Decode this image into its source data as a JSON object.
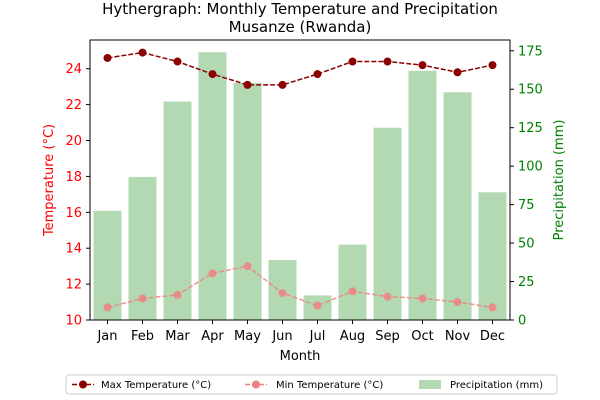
{
  "chart_data": {
    "type": "bar+line",
    "title": "Hythergraph: Monthly Temperature and Precipitation",
    "subtitle": "Musanze (Rwanda)",
    "xlabel": "Month",
    "ylabel_left": "Temperature (°C)",
    "ylabel_right": "Precipitation (mm)",
    "categories": [
      "Jan",
      "Feb",
      "Mar",
      "Apr",
      "May",
      "Jun",
      "Jul",
      "Aug",
      "Sep",
      "Oct",
      "Nov",
      "Dec"
    ],
    "ylim_left": [
      10,
      25.6
    ],
    "yticks_left": [
      10,
      12,
      14,
      16,
      18,
      20,
      22,
      24
    ],
    "ylim_right": [
      0,
      182
    ],
    "yticks_right": [
      0,
      25,
      50,
      75,
      100,
      125,
      150,
      175
    ],
    "grid": false,
    "legend_position": "bottom",
    "colors": {
      "max_temp": "#8b0000",
      "min_temp": "#f08080",
      "precip": "#b2d9b2",
      "left_axis": "#ff0000",
      "right_axis": "#008000"
    },
    "series": [
      {
        "name": "Max Temperature (°C)",
        "kind": "line",
        "axis": "left",
        "values": [
          24.6,
          24.9,
          24.4,
          23.7,
          23.1,
          23.1,
          23.7,
          24.4,
          24.4,
          24.2,
          23.8,
          24.2
        ]
      },
      {
        "name": "Min Temperature (°C)",
        "kind": "line",
        "axis": "left",
        "values": [
          10.7,
          11.2,
          11.4,
          12.6,
          13.0,
          11.5,
          10.8,
          11.6,
          11.3,
          11.2,
          11.0,
          10.7
        ]
      },
      {
        "name": "Precipitation (mm)",
        "kind": "bar",
        "axis": "right",
        "values": [
          71,
          93,
          142,
          174,
          154,
          39,
          16,
          49,
          125,
          162,
          148,
          83
        ]
      }
    ]
  }
}
